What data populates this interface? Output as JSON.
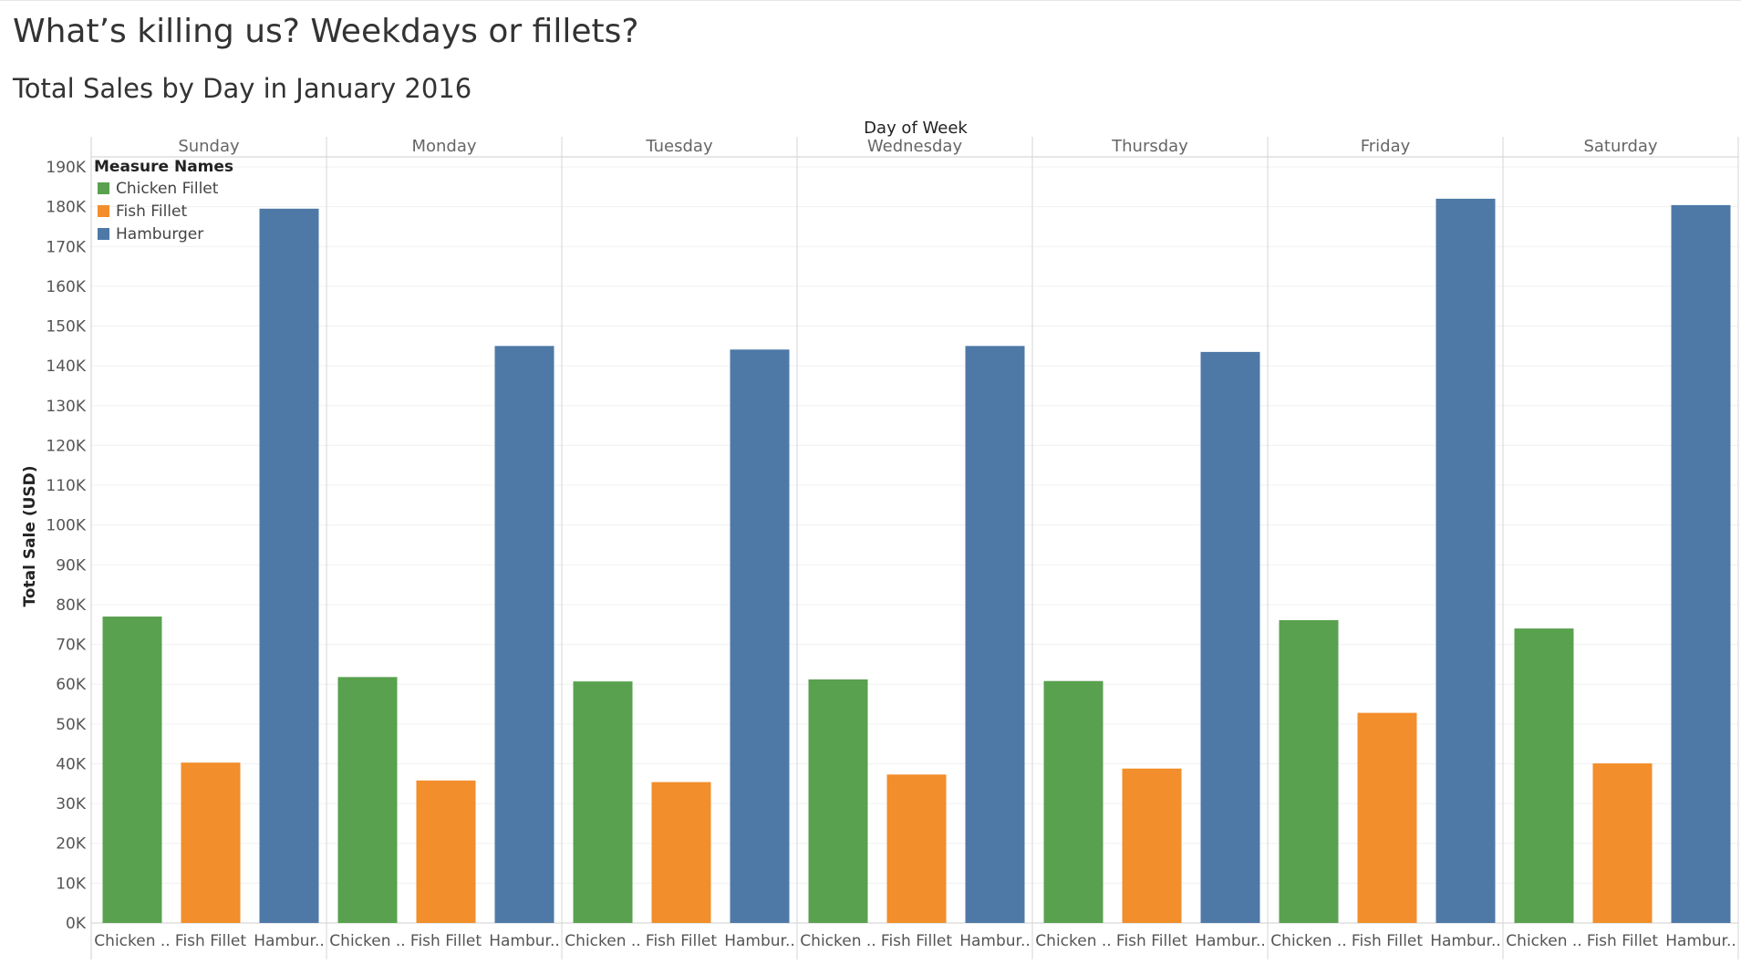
{
  "title": "What’s killing us? Weekdays or fillets?",
  "subtitle": "Total Sales by Day in January 2016",
  "colors": {
    "Chicken Fillet": "#59a14f",
    "Fish Fillet": "#f28e2b",
    "Hamburger": "#4e79a7"
  },
  "legend": {
    "title": "Measure Names",
    "items": [
      "Chicken Fillet",
      "Fish Fillet",
      "Hamburger"
    ]
  },
  "chart_data": {
    "type": "bar",
    "title": "Total Sales by Day in January 2016",
    "column_header": "Day of Week",
    "ylabel": "Total Sale (USD)",
    "ylim": [
      0,
      190000
    ],
    "y_ticks": [
      "0K",
      "10K",
      "20K",
      "30K",
      "40K",
      "50K",
      "60K",
      "70K",
      "80K",
      "90K",
      "100K",
      "110K",
      "120K",
      "130K",
      "140K",
      "150K",
      "160K",
      "170K",
      "180K",
      "190K"
    ],
    "grid": true,
    "legend_position": "top-left",
    "categories": [
      "Sunday",
      "Monday",
      "Tuesday",
      "Wednesday",
      "Thursday",
      "Friday",
      "Saturday"
    ],
    "bar_labels": [
      "Chicken ..",
      "Fish Fillet",
      "Hambur.."
    ],
    "series": [
      {
        "name": "Chicken Fillet",
        "values": [
          77000,
          61800,
          60700,
          61200,
          60800,
          76100,
          74000
        ]
      },
      {
        "name": "Fish Fillet",
        "values": [
          40300,
          35800,
          35400,
          37300,
          38800,
          52800,
          40100
        ]
      },
      {
        "name": "Hamburger",
        "values": [
          179500,
          145000,
          144100,
          145000,
          143500,
          182000,
          180400
        ]
      }
    ]
  }
}
